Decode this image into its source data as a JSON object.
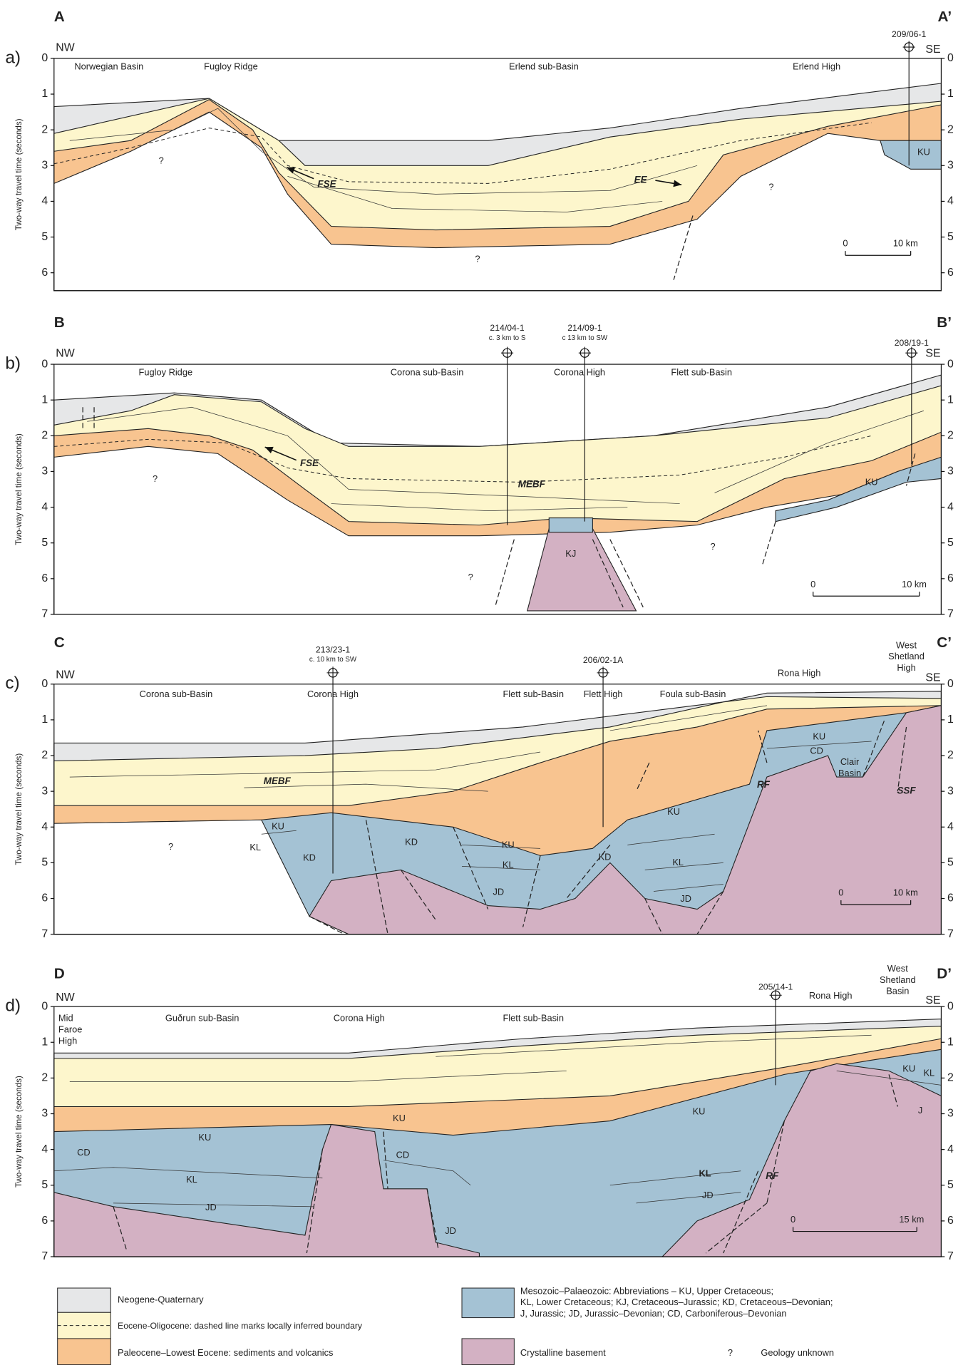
{
  "panels": [
    {
      "label": "a)",
      "section": [
        "A",
        "A’"
      ],
      "directions": [
        "NW",
        "SE"
      ],
      "y_axis_label": "Two-way travel time (seconds)",
      "yticks": [
        0,
        1,
        2,
        3,
        4,
        5,
        6
      ],
      "wells": [
        {
          "name": "209/06-1"
        }
      ],
      "locations": [
        [
          "Norwegian Basin"
        ],
        [
          "Fugloy Ridge"
        ],
        [
          "Erlend sub-Basin"
        ],
        [
          "Erlend High"
        ]
      ],
      "annotations": [
        [
          "FSE"
        ],
        [
          "EE"
        ],
        [
          "?"
        ],
        [
          "?"
        ],
        [
          "?"
        ],
        [
          "KU"
        ]
      ],
      "scale_bar": [
        "0",
        "10 km"
      ]
    },
    {
      "label": "b)",
      "section": [
        "B",
        "B’"
      ],
      "directions": [
        "NW",
        "SE"
      ],
      "y_axis_label": "Two-way travel time (seconds)",
      "yticks": [
        0,
        1,
        2,
        3,
        4,
        5,
        6,
        7
      ],
      "wells": [
        {
          "name": "214/04-1",
          "note": "c. 3 km to S"
        },
        {
          "name": "214/09-1",
          "note": "c 13 km to SW"
        },
        {
          "name": "208/19-1"
        }
      ],
      "locations": [
        [
          "Fugloy Ridge"
        ],
        [
          "Corona sub-Basin"
        ],
        [
          "Corona High"
        ],
        [
          "Flett sub-Basin"
        ]
      ],
      "annotations": [
        [
          "FSE"
        ],
        [
          "MEBF"
        ],
        [
          "KJ"
        ],
        [
          "?"
        ],
        [
          "?"
        ],
        [
          "?"
        ],
        [
          "KU"
        ]
      ],
      "scale_bar": [
        "0",
        "10 km"
      ]
    },
    {
      "label": "c)",
      "section": [
        "C",
        "C’"
      ],
      "directions": [
        "NW",
        "SE"
      ],
      "y_axis_label": "Two-way travel time (seconds)",
      "yticks": [
        0,
        1,
        2,
        3,
        4,
        5,
        6,
        7
      ],
      "wells": [
        {
          "name": "213/23-1",
          "note": "c. 10 km to SW"
        },
        {
          "name": "206/02-1A"
        }
      ],
      "locations": [
        [
          "Corona sub-Basin"
        ],
        [
          "Corona High"
        ],
        [
          "Flett sub-Basin"
        ],
        [
          "Flett High"
        ],
        [
          "Foula sub-Basin"
        ],
        [
          "Rona High"
        ],
        [
          "West",
          "Shetland",
          "High"
        ]
      ],
      "annotations": [
        [
          "MEBF"
        ],
        [
          "?"
        ],
        [
          "KU"
        ],
        [
          "KL"
        ],
        [
          "KD"
        ],
        [
          "KD"
        ],
        [
          "KU"
        ],
        [
          "KL"
        ],
        [
          "JD"
        ],
        [
          "KD"
        ],
        [
          "KU"
        ],
        [
          "KL"
        ],
        [
          "JD"
        ],
        [
          "KU"
        ],
        [
          "CD"
        ],
        [
          "Clair",
          "Basin"
        ],
        [
          "RF"
        ],
        [
          "SSF"
        ]
      ],
      "scale_bar": [
        "0",
        "10 km"
      ]
    },
    {
      "label": "d)",
      "section": [
        "D",
        "D’"
      ],
      "directions": [
        "NW",
        "SE"
      ],
      "y_axis_label": "Two-way travel time (seconds)",
      "yticks": [
        0,
        1,
        2,
        3,
        4,
        5,
        6,
        7
      ],
      "wells": [
        {
          "name": "205/14-1"
        }
      ],
      "locations": [
        [
          "Mid",
          "Faroe",
          "High"
        ],
        [
          "Guðrun sub-Basin"
        ],
        [
          "Corona High"
        ],
        [
          "Flett sub-Basin"
        ],
        [
          "Rona High"
        ],
        [
          "West",
          "Shetland",
          "Basin"
        ]
      ],
      "annotations": [
        [
          "KU"
        ],
        [
          "CD"
        ],
        [
          "KL"
        ],
        [
          "JD"
        ],
        [
          "KU"
        ],
        [
          "CD"
        ],
        [
          "JD"
        ],
        [
          "KU"
        ],
        [
          "KL"
        ],
        [
          "JD"
        ],
        [
          "RF"
        ],
        [
          "KU"
        ],
        [
          "KL"
        ],
        [
          "J"
        ]
      ],
      "scale_bar": [
        "0",
        "15 km"
      ]
    }
  ],
  "legend": [
    {
      "name": "Neogene-Quaternary"
    },
    {
      "name": "Eocene-Oligocene: dashed line marks locally inferred boundary"
    },
    {
      "name": "Paleocene–Lowest Eocene: sediments and volcanics"
    },
    {
      "lines": [
        "Mesozoic–Palaeozoic: Abbreviations – KU, Upper Cretaceous;",
        "KL, Lower Cretaceous; KJ, Cretaceous–Jurassic; KD, Cretaceous–Devonian;",
        "J, Jurassic; JD, Jurassic–Devonian; CD, Carboniferous–Devonian"
      ]
    },
    {
      "name": "Crystalline basement"
    },
    {
      "symbol": "?",
      "name": "Geology unknown"
    }
  ]
}
